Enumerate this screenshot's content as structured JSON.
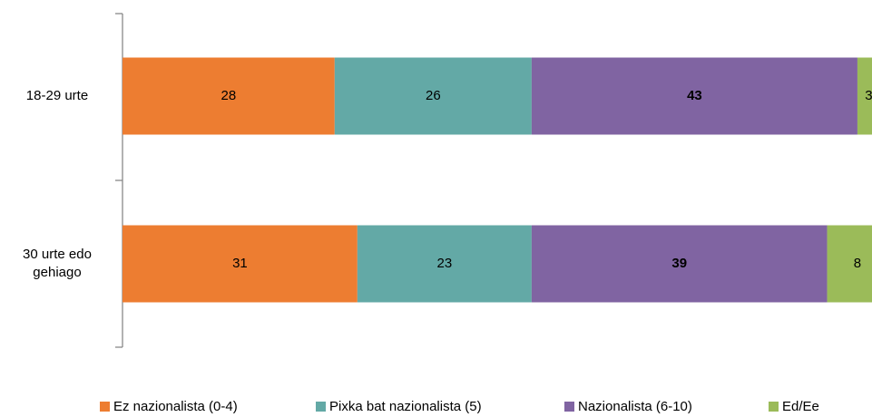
{
  "chart_data": {
    "type": "stacked-barh",
    "categories": [
      "18-29 urte",
      "30 urte edo gehiago"
    ],
    "series": [
      {
        "name": "Ez nazionalista (0-4)",
        "color": "#ED7D31",
        "values": [
          28,
          31
        ]
      },
      {
        "name": "Pixka bat nazionalista (5)",
        "color": "#63A9A6",
        "values": [
          26,
          23
        ]
      },
      {
        "name": "Nazionalista (6-10)",
        "color": "#8064A2",
        "values": [
          43,
          39
        ]
      },
      {
        "name": "Ed/Ee",
        "color": "#9BBB59",
        "values": [
          3,
          8
        ]
      }
    ],
    "legend": "bottom"
  }
}
